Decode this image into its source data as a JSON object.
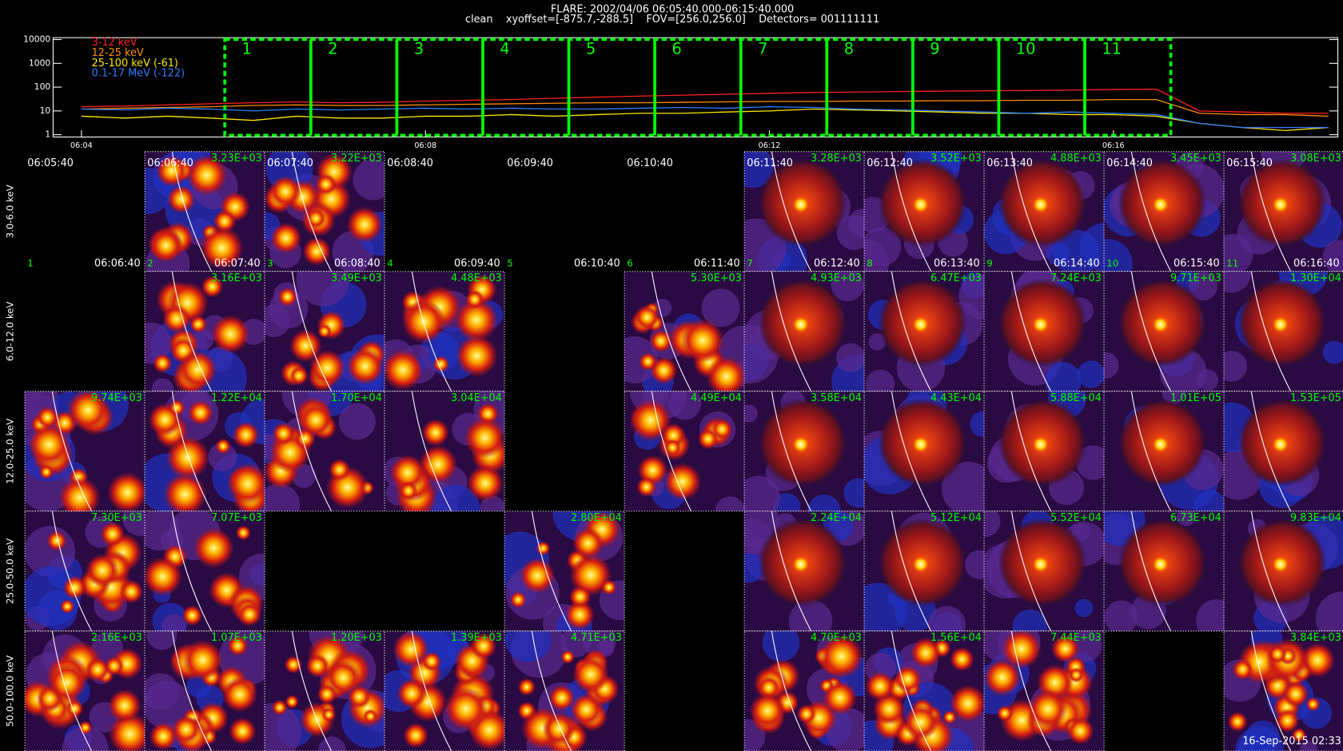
{
  "header": {
    "title": "FLARE: 2002/04/06 06:05:40.000-06:15:40.000",
    "subtitle": "clean    xyoffset=[-875.7,-288.5]    FOV=[256.0,256.0]    Detectors= 001111111"
  },
  "chart_data": {
    "type": "line",
    "log_y": true,
    "x": [
      4.0,
      4.5,
      5.0,
      5.5,
      6.0,
      6.5,
      7.0,
      7.5,
      8.0,
      8.5,
      9.0,
      9.5,
      10.0,
      10.5,
      11.0,
      11.5,
      12.0,
      12.5,
      13.0,
      13.5,
      14.0,
      14.5,
      15.0,
      15.5,
      16.0,
      16.5,
      17.0,
      17.5,
      18.0,
      18.5
    ],
    "series": [
      {
        "name": "3-12 keV",
        "color": "#ff2020",
        "values": [
          15,
          16,
          18,
          20,
          22,
          24,
          22,
          23,
          26,
          28,
          30,
          34,
          38,
          42,
          46,
          50,
          55,
          60,
          62,
          65,
          68,
          70,
          72,
          75,
          80,
          82,
          10,
          9,
          8,
          8
        ]
      },
      {
        "name": "12-25 keV",
        "color": "#ff8c00",
        "values": [
          12,
          13,
          14,
          15,
          17,
          18,
          17,
          17,
          18,
          19,
          20,
          21,
          22,
          22,
          23,
          24,
          25,
          25,
          26,
          26,
          27,
          27,
          28,
          28,
          30,
          30,
          8,
          7,
          7,
          6
        ]
      },
      {
        "name": "25-100 keV (-61)",
        "color": "#ffe600",
        "values": [
          6,
          5,
          6,
          5,
          4,
          6,
          5,
          5,
          6,
          6,
          7,
          6,
          7,
          8,
          8,
          9,
          10,
          12,
          11,
          10,
          9,
          8,
          8,
          7,
          7,
          6,
          3,
          2,
          1.5,
          2
        ]
      },
      {
        "name": "0.1-17 MeV (-122)",
        "color": "#2a7fff",
        "values": [
          12,
          11,
          13,
          12,
          10,
          12,
          11,
          12,
          13,
          12,
          13,
          12,
          12,
          13,
          14,
          13,
          15,
          14,
          12,
          11,
          10,
          9,
          8,
          9,
          8,
          7,
          3,
          2,
          2,
          2
        ]
      }
    ],
    "xlim": [
      3.67,
      18.61
    ],
    "xticks": [
      {
        "value": 4,
        "label": "06:04"
      },
      {
        "value": 8,
        "label": "06:08"
      },
      {
        "value": 12,
        "label": "06:12"
      },
      {
        "value": 16,
        "label": "06:16"
      }
    ],
    "ylim": [
      0.8,
      12000
    ],
    "yticks": [
      1,
      10,
      100,
      1000,
      10000
    ],
    "interval_edges": [
      5.667,
      6.667,
      7.667,
      8.667,
      9.667,
      10.667,
      11.667,
      12.667,
      13.667,
      14.667,
      15.667,
      16.667
    ],
    "interval_labels": [
      "1",
      "2",
      "3",
      "4",
      "5",
      "6",
      "7",
      "8",
      "9",
      "10",
      "11"
    ],
    "interval_color": "#00ff00"
  },
  "image_grid": {
    "row_labels": [
      "3.0-6.0 keV",
      "6.0-12.0 keV",
      "12.0-25.0 keV",
      "25.0-50.0 keV",
      "50.0-100.0 keV"
    ],
    "columns": [
      {
        "start": "06:05:40",
        "end": "06:06:40",
        "number": "1"
      },
      {
        "start": "06:06:40",
        "end": "06:07:40",
        "number": "2"
      },
      {
        "start": "06:07:40",
        "end": "06:08:40",
        "number": "3"
      },
      {
        "start": "06:08:40",
        "end": "06:09:40",
        "number": "4"
      },
      {
        "start": "06:09:40",
        "end": "06:10:40",
        "number": "5"
      },
      {
        "start": "06:10:40",
        "end": "06:11:40",
        "number": "6"
      },
      {
        "start": "06:11:40",
        "end": "06:12:40",
        "number": "7"
      },
      {
        "start": "06:12:40",
        "end": "06:13:40",
        "number": "8"
      },
      {
        "start": "06:13:40",
        "end": "06:14:40",
        "number": "9"
      },
      {
        "start": "06:14:40",
        "end": "06:15:40",
        "number": "10"
      },
      {
        "start": "06:15:40",
        "end": "06:16:40",
        "number": "11"
      }
    ],
    "cells": [
      [
        null,
        "3.23E+03",
        "3.22E+03",
        null,
        null,
        null,
        "3.28E+03",
        "3.52E+03",
        "4.88E+03",
        "3.45E+03",
        "3.08E+03"
      ],
      [
        null,
        "3.16E+03",
        "3.49E+03",
        "4.48E+03",
        null,
        "5.30E+03",
        "4.93E+03",
        "6.47E+03",
        "7.24E+03",
        "9.71E+03",
        "1.30E+04"
      ],
      [
        "9.74E+03",
        "1.22E+04",
        "1.70E+04",
        "3.04E+04",
        null,
        "4.49E+04",
        "3.58E+04",
        "4.43E+04",
        "5.88E+04",
        "1.01E+05",
        "1.53E+05"
      ],
      [
        "7.30E+03",
        "7.07E+03",
        null,
        null,
        "2.80E+04",
        null,
        "2.24E+04",
        "5.12E+04",
        "5.52E+04",
        "6.73E+04",
        "9.83E+04"
      ],
      [
        "2.16E+03",
        "1.07E+03",
        "1.20E+03",
        "1.39E+03",
        "4.71E+03",
        null,
        "4.70E+03",
        "1.56E+04",
        "7.44E+03",
        null,
        "3.84E+03"
      ]
    ],
    "timestamp": "16-Sep-2015 02:33"
  }
}
